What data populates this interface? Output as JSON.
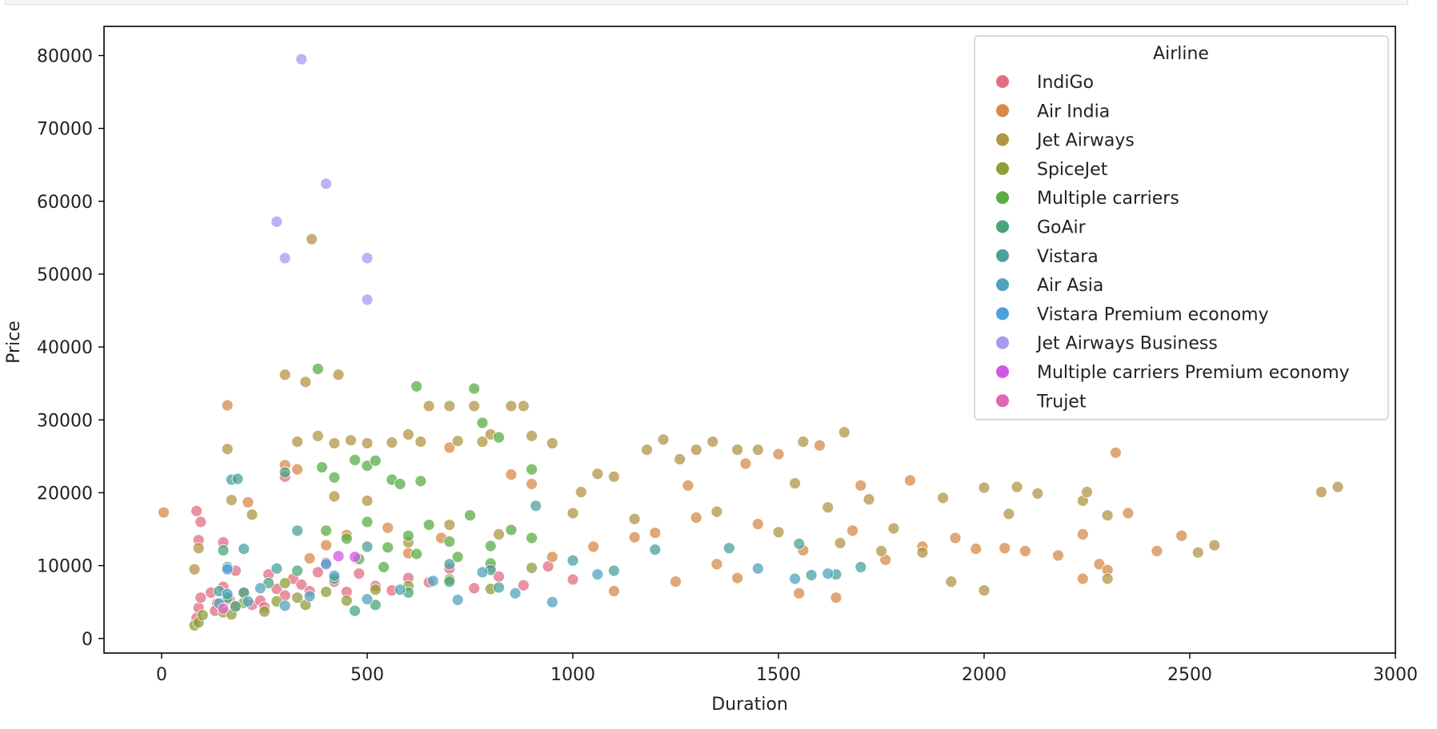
{
  "chart_data": {
    "type": "scatter",
    "title": "",
    "xlabel": "Duration",
    "ylabel": "Price",
    "xlim": [
      -140,
      3000
    ],
    "ylim": [
      -2000,
      84000
    ],
    "xticks": [
      0,
      500,
      1000,
      1500,
      2000,
      2500,
      3000
    ],
    "yticks": [
      0,
      10000,
      20000,
      30000,
      40000,
      50000,
      60000,
      70000,
      80000
    ],
    "grid": false,
    "legend": {
      "title": "Airline",
      "placement": "top-right"
    },
    "series": [
      {
        "name": "IndiGo",
        "color": "#e26d82",
        "points": [
          [
            85,
            2800
          ],
          [
            90,
            4200
          ],
          [
            95,
            5600
          ],
          [
            120,
            6300
          ],
          [
            135,
            4800
          ],
          [
            150,
            7100
          ],
          [
            165,
            5400
          ],
          [
            180,
            4400
          ],
          [
            200,
            6200
          ],
          [
            220,
            4600
          ],
          [
            240,
            5200
          ],
          [
            260,
            8800
          ],
          [
            280,
            6800
          ],
          [
            300,
            5900
          ],
          [
            320,
            8200
          ],
          [
            340,
            7400
          ],
          [
            360,
            6500
          ],
          [
            380,
            9100
          ],
          [
            400,
            10400
          ],
          [
            420,
            7800
          ],
          [
            450,
            6400
          ],
          [
            480,
            8900
          ],
          [
            520,
            7200
          ],
          [
            560,
            6600
          ],
          [
            600,
            8300
          ],
          [
            650,
            7700
          ],
          [
            700,
            9600
          ],
          [
            760,
            6900
          ],
          [
            820,
            8500
          ],
          [
            880,
            7300
          ],
          [
            940,
            9900
          ],
          [
            1000,
            8100
          ],
          [
            85,
            17500
          ],
          [
            95,
            16000
          ],
          [
            90,
            13500
          ],
          [
            150,
            13200
          ],
          [
            300,
            22200
          ],
          [
            180,
            9300
          ],
          [
            130,
            3800
          ],
          [
            250,
            4300
          ]
        ]
      },
      {
        "name": "Air India",
        "color": "#d78a48",
        "points": [
          [
            5,
            17300
          ],
          [
            160,
            32000
          ],
          [
            210,
            18700
          ],
          [
            300,
            23800
          ],
          [
            330,
            23200
          ],
          [
            450,
            14200
          ],
          [
            600,
            11700
          ],
          [
            700,
            26200
          ],
          [
            850,
            22500
          ],
          [
            900,
            21200
          ],
          [
            1050,
            12600
          ],
          [
            1150,
            13900
          ],
          [
            1200,
            14500
          ],
          [
            1280,
            21000
          ],
          [
            1350,
            10200
          ],
          [
            1420,
            24000
          ],
          [
            1500,
            25300
          ],
          [
            1560,
            12100
          ],
          [
            1600,
            26500
          ],
          [
            1640,
            5600
          ],
          [
            1700,
            21000
          ],
          [
            1760,
            10800
          ],
          [
            1820,
            21700
          ],
          [
            1850,
            12600
          ],
          [
            1930,
            13800
          ],
          [
            1980,
            12300
          ],
          [
            2050,
            12400
          ],
          [
            2100,
            12000
          ],
          [
            2180,
            11400
          ],
          [
            2240,
            8200
          ],
          [
            2240,
            14300
          ],
          [
            2280,
            10200
          ],
          [
            2300,
            9400
          ],
          [
            2320,
            25500
          ],
          [
            2350,
            17200
          ],
          [
            2420,
            12000
          ],
          [
            2480,
            14100
          ],
          [
            1100,
            6500
          ],
          [
            1250,
            7800
          ],
          [
            1400,
            8300
          ],
          [
            1550,
            6200
          ],
          [
            950,
            11200
          ],
          [
            800,
            9700
          ],
          [
            680,
            13800
          ],
          [
            550,
            15200
          ],
          [
            400,
            12800
          ],
          [
            360,
            11000
          ],
          [
            1680,
            14800
          ],
          [
            1450,
            15700
          ],
          [
            1300,
            16600
          ]
        ]
      },
      {
        "name": "Jet Airways",
        "color": "#b29644",
        "points": [
          [
            80,
            9500
          ],
          [
            90,
            12400
          ],
          [
            160,
            26000
          ],
          [
            170,
            19000
          ],
          [
            220,
            17000
          ],
          [
            300,
            36200
          ],
          [
            330,
            27000
          ],
          [
            350,
            35200
          ],
          [
            365,
            54800
          ],
          [
            380,
            27800
          ],
          [
            420,
            26800
          ],
          [
            430,
            36200
          ],
          [
            460,
            27200
          ],
          [
            500,
            26800
          ],
          [
            560,
            26900
          ],
          [
            600,
            28000
          ],
          [
            630,
            27000
          ],
          [
            650,
            31900
          ],
          [
            700,
            31900
          ],
          [
            720,
            27100
          ],
          [
            760,
            31900
          ],
          [
            780,
            27000
          ],
          [
            800,
            28000
          ],
          [
            850,
            31900
          ],
          [
            880,
            31900
          ],
          [
            900,
            27800
          ],
          [
            950,
            26800
          ],
          [
            1020,
            20100
          ],
          [
            1060,
            22600
          ],
          [
            1100,
            22200
          ],
          [
            1180,
            25900
          ],
          [
            1220,
            27300
          ],
          [
            1260,
            24600
          ],
          [
            1300,
            25900
          ],
          [
            1340,
            27000
          ],
          [
            1400,
            25900
          ],
          [
            1450,
            25900
          ],
          [
            1540,
            21300
          ],
          [
            1560,
            27000
          ],
          [
            1620,
            18000
          ],
          [
            1660,
            28300
          ],
          [
            1720,
            19100
          ],
          [
            1780,
            15100
          ],
          [
            1900,
            19300
          ],
          [
            2000,
            20700
          ],
          [
            2060,
            17100
          ],
          [
            2080,
            20800
          ],
          [
            2130,
            19900
          ],
          [
            2240,
            18900
          ],
          [
            2250,
            20100
          ],
          [
            2300,
            16900
          ],
          [
            2300,
            8200
          ],
          [
            2520,
            11800
          ],
          [
            2560,
            12800
          ],
          [
            2820,
            20100
          ],
          [
            2860,
            20800
          ],
          [
            2000,
            6600
          ],
          [
            1920,
            7800
          ],
          [
            1000,
            17200
          ],
          [
            1150,
            16400
          ],
          [
            1350,
            17400
          ],
          [
            1500,
            14600
          ],
          [
            1650,
            13100
          ],
          [
            1750,
            12000
          ],
          [
            1850,
            11800
          ],
          [
            700,
            15600
          ],
          [
            820,
            14300
          ],
          [
            500,
            18900
          ],
          [
            420,
            19500
          ],
          [
            600,
            13200
          ]
        ]
      },
      {
        "name": "SpiceJet",
        "color": "#8f9e3b",
        "points": [
          [
            80,
            1800
          ],
          [
            90,
            2200
          ],
          [
            100,
            3200
          ],
          [
            150,
            3600
          ],
          [
            170,
            3300
          ],
          [
            200,
            4900
          ],
          [
            280,
            5100
          ],
          [
            330,
            5600
          ],
          [
            350,
            4600
          ],
          [
            400,
            6400
          ],
          [
            450,
            5200
          ],
          [
            520,
            6700
          ],
          [
            600,
            7200
          ],
          [
            700,
            8100
          ],
          [
            800,
            6800
          ],
          [
            900,
            9700
          ],
          [
            300,
            7600
          ],
          [
            250,
            3700
          ]
        ]
      },
      {
        "name": "Multiple carriers",
        "color": "#5aad45",
        "points": [
          [
            380,
            37000
          ],
          [
            390,
            23500
          ],
          [
            420,
            22100
          ],
          [
            470,
            24500
          ],
          [
            500,
            23700
          ],
          [
            520,
            24400
          ],
          [
            560,
            21800
          ],
          [
            580,
            21200
          ],
          [
            620,
            34600
          ],
          [
            630,
            21600
          ],
          [
            760,
            34300
          ],
          [
            780,
            29600
          ],
          [
            820,
            27600
          ],
          [
            900,
            23200
          ],
          [
            400,
            14800
          ],
          [
            450,
            13700
          ],
          [
            500,
            16000
          ],
          [
            550,
            12500
          ],
          [
            600,
            14100
          ],
          [
            650,
            15600
          ],
          [
            700,
            13300
          ],
          [
            750,
            16900
          ],
          [
            800,
            12700
          ],
          [
            850,
            14900
          ],
          [
            900,
            13800
          ],
          [
            480,
            10900
          ],
          [
            540,
            9800
          ],
          [
            620,
            11600
          ],
          [
            720,
            11200
          ],
          [
            800,
            10300
          ]
        ]
      },
      {
        "name": "GoAir",
        "color": "#4aa57a",
        "points": [
          [
            150,
            12100
          ],
          [
            160,
            5600
          ],
          [
            200,
            6300
          ],
          [
            260,
            7600
          ],
          [
            330,
            9300
          ],
          [
            420,
            8200
          ],
          [
            470,
            3800
          ],
          [
            520,
            4600
          ],
          [
            600,
            6300
          ],
          [
            700,
            7800
          ],
          [
            300,
            22800
          ],
          [
            180,
            4400
          ]
        ]
      },
      {
        "name": "Vistara",
        "color": "#4aa29d",
        "points": [
          [
            140,
            6500
          ],
          [
            160,
            9800
          ],
          [
            170,
            21800
          ],
          [
            185,
            21900
          ],
          [
            200,
            12300
          ],
          [
            280,
            9600
          ],
          [
            330,
            14800
          ],
          [
            500,
            12600
          ],
          [
            700,
            10200
          ],
          [
            800,
            9400
          ],
          [
            1000,
            10700
          ],
          [
            1100,
            9300
          ],
          [
            1200,
            12200
          ],
          [
            1380,
            12400
          ],
          [
            1550,
            13000
          ],
          [
            1580,
            8700
          ],
          [
            1640,
            8800
          ],
          [
            1700,
            9800
          ],
          [
            910,
            18200
          ],
          [
            820,
            7000
          ]
        ]
      },
      {
        "name": "Air Asia",
        "color": "#50a3be",
        "points": [
          [
            140,
            4800
          ],
          [
            160,
            6100
          ],
          [
            210,
            5100
          ],
          [
            240,
            6900
          ],
          [
            300,
            4500
          ],
          [
            360,
            5800
          ],
          [
            420,
            8600
          ],
          [
            500,
            5400
          ],
          [
            580,
            6700
          ],
          [
            660,
            7900
          ],
          [
            720,
            5300
          ],
          [
            780,
            9100
          ],
          [
            860,
            6200
          ],
          [
            950,
            5000
          ],
          [
            1060,
            8800
          ],
          [
            1450,
            9600
          ],
          [
            1540,
            8200
          ],
          [
            1620,
            8900
          ]
        ]
      },
      {
        "name": "Vistara Premium economy",
        "color": "#4e9fdd",
        "points": [
          [
            160,
            9500
          ],
          [
            400,
            10200
          ]
        ]
      },
      {
        "name": "Jet Airways Business",
        "color": "#a79af0",
        "points": [
          [
            340,
            79500
          ],
          [
            400,
            62400
          ],
          [
            280,
            57200
          ],
          [
            300,
            52200
          ],
          [
            500,
            52200
          ],
          [
            500,
            46500
          ]
        ]
      },
      {
        "name": "Multiple carriers Premium economy",
        "color": "#d157e8",
        "points": [
          [
            430,
            11300
          ],
          [
            470,
            11200
          ]
        ]
      },
      {
        "name": "Trujet",
        "color": "#e265b8",
        "points": [
          [
            150,
            4100
          ]
        ]
      }
    ]
  }
}
